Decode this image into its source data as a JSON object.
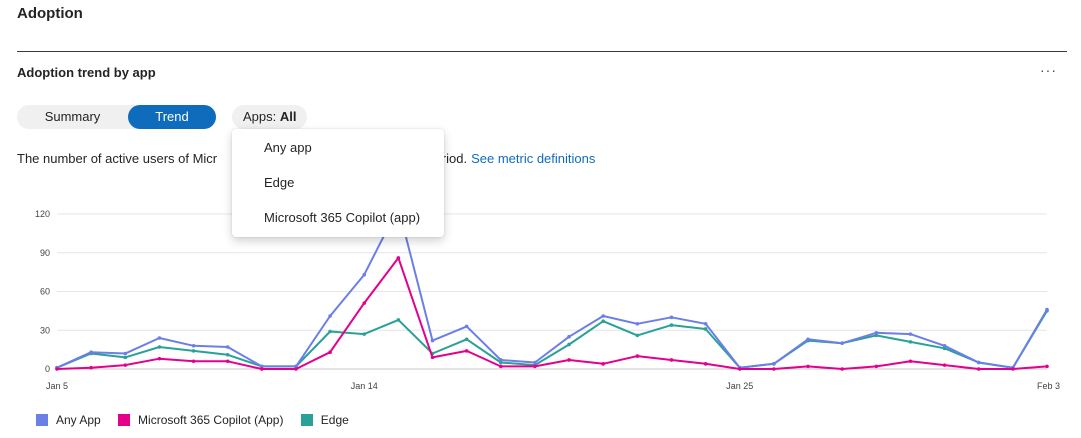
{
  "page": {
    "title": "Adoption"
  },
  "section": {
    "title": "Adoption trend by app",
    "more_label": "···"
  },
  "toggle": {
    "summary_label": "Summary",
    "trend_label": "Trend"
  },
  "filter": {
    "prefix": "Apps: ",
    "value": "All"
  },
  "description": {
    "text_start": "The number of active users of Micr",
    "text_end": "cted period.",
    "link": "See metric definitions"
  },
  "dropdown": {
    "options": [
      "Any app",
      "Edge",
      "Microsoft 365 Copilot (app)"
    ]
  },
  "colors": {
    "any_app": "#6b7fe6",
    "copilot": "#e3008c",
    "edge": "#2aa198",
    "accent": "#0f6cbd"
  },
  "chart_data": {
    "type": "line",
    "x": [
      "Jan 5",
      "Jan 6",
      "Jan 7",
      "Jan 8",
      "Jan 9",
      "Jan 10",
      "Jan 11",
      "Jan 12",
      "Jan 13",
      "Jan 14",
      "Jan 15",
      "Jan 16",
      "Jan 17",
      "Jan 18",
      "Jan 19",
      "Jan 20",
      "Jan 21",
      "Jan 22",
      "Jan 23",
      "Jan 24",
      "Jan 25",
      "Jan 26",
      "Jan 27",
      "Jan 28",
      "Jan 29",
      "Jan 30",
      "Jan 31",
      "Feb 1",
      "Feb 2",
      "Feb 3"
    ],
    "x_tick_labels": [
      "Jan 5",
      "Jan 14",
      "Jan 25",
      "Feb 3"
    ],
    "ylim": [
      0,
      120
    ],
    "y_ticks": [
      0,
      30,
      60,
      90,
      120
    ],
    "grid": true,
    "legend_position": "bottom-left",
    "series": [
      {
        "name": "Any App",
        "color_key": "any_app",
        "values": [
          1,
          13,
          12,
          24,
          18,
          17,
          2,
          2,
          41,
          73,
          125,
          22,
          33,
          7,
          5,
          25,
          41,
          35,
          40,
          35,
          1,
          4,
          23,
          20,
          28,
          27,
          18,
          5,
          1,
          46
        ]
      },
      {
        "name": "Microsoft 365 Copilot (App)",
        "color_key": "copilot",
        "values": [
          0,
          1,
          3,
          8,
          6,
          6,
          0,
          0,
          13,
          51,
          86,
          9,
          14,
          2,
          2,
          7,
          4,
          10,
          7,
          4,
          0,
          0,
          2,
          0,
          2,
          6,
          3,
          0,
          0,
          2
        ]
      },
      {
        "name": "Edge",
        "color_key": "edge",
        "values": [
          1,
          12,
          9,
          17,
          14,
          11,
          2,
          2,
          29,
          27,
          38,
          12,
          23,
          5,
          3,
          19,
          37,
          26,
          34,
          31,
          1,
          4,
          22,
          20,
          26,
          21,
          16,
          5,
          1,
          45
        ]
      }
    ]
  }
}
